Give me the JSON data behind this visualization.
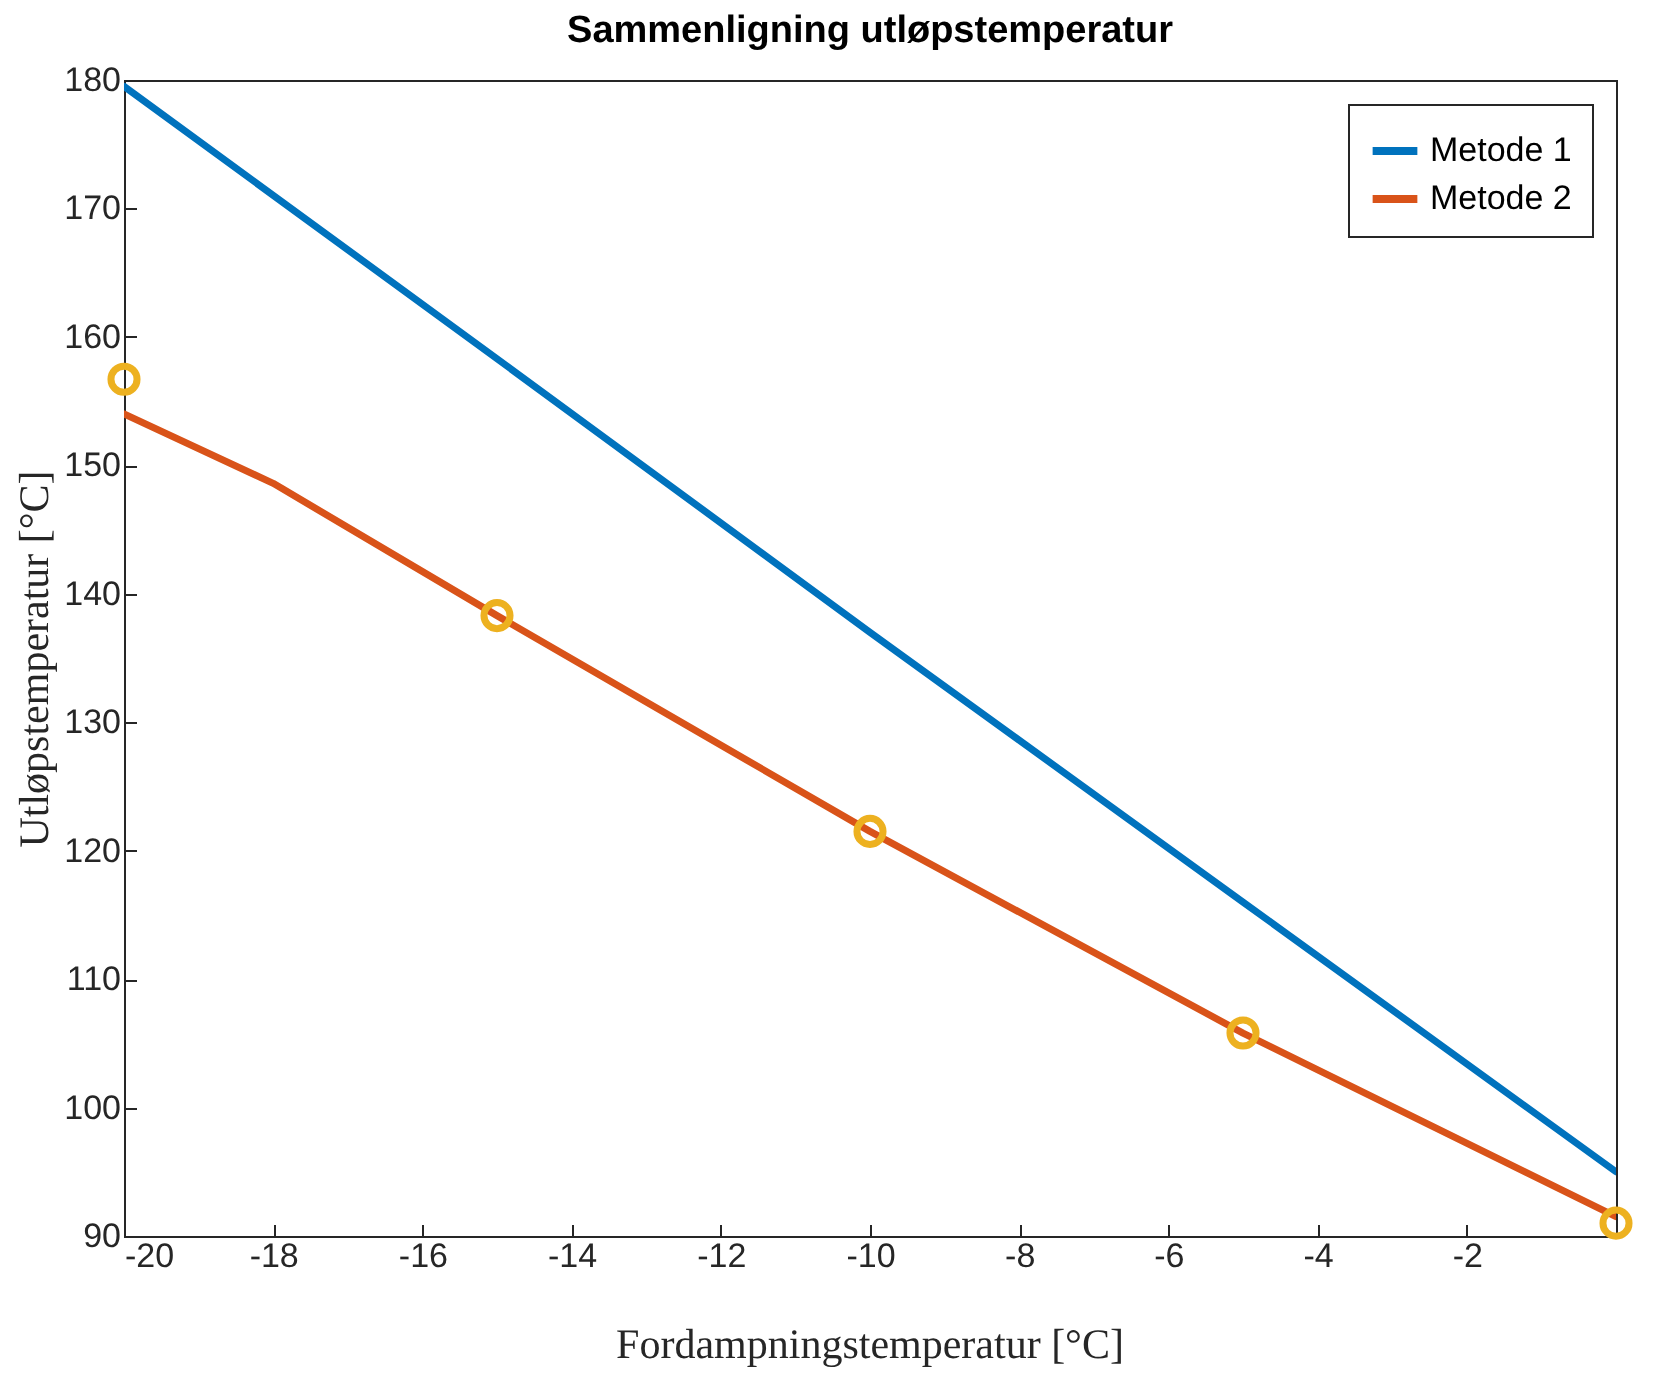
{
  "chart_data": {
    "type": "line",
    "title": "Sammenligning utløpstemperatur",
    "xlabel": "Fordampningstemperatur [°C]",
    "ylabel": "Utløpstemperatur [°C]",
    "series": [
      {
        "name": "Metode 1",
        "color": "#0072bd",
        "x": [
          -20,
          -15,
          -10,
          -5,
          0
        ],
        "values": [
          179.5,
          158.3,
          137.0,
          116.0,
          95.0
        ]
      },
      {
        "name": "Metode 2",
        "color": "#d95319",
        "x": [
          -20,
          -18,
          -15,
          -10,
          -5,
          0
        ],
        "values": [
          154.0,
          148.6,
          138.3,
          121.5,
          105.8,
          91.5
        ]
      },
      {
        "type": "scatter",
        "marker": "circle",
        "color": "#edb120",
        "x": [
          -20,
          -15,
          -10,
          -5,
          0
        ],
        "values": [
          156.7,
          138.3,
          121.5,
          105.8,
          91.0
        ]
      }
    ],
    "xlim": [
      -20,
      0
    ],
    "xticks": [
      -20,
      -18,
      -16,
      -14,
      -12,
      -10,
      -8,
      -6,
      -4,
      -2
    ],
    "ylim": [
      90,
      180
    ],
    "yticks": [
      90,
      100,
      110,
      120,
      130,
      140,
      150,
      160,
      170,
      180
    ],
    "legend": "top right"
  }
}
